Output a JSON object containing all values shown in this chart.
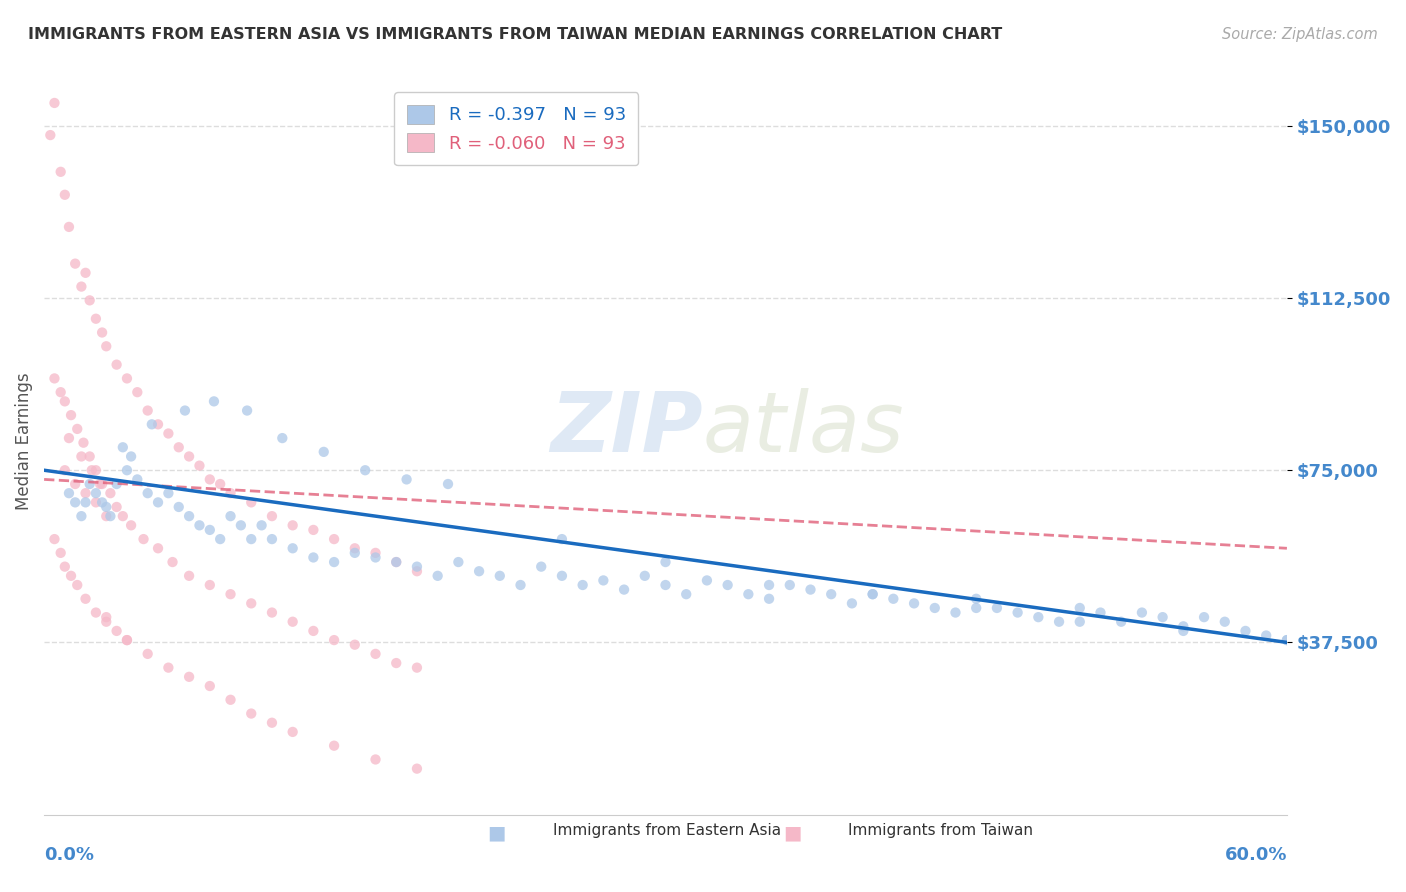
{
  "title": "IMMIGRANTS FROM EASTERN ASIA VS IMMIGRANTS FROM TAIWAN MEDIAN EARNINGS CORRELATION CHART",
  "source": "Source: ZipAtlas.com",
  "ylabel": "Median Earnings",
  "xmin": 0.0,
  "xmax": 60.0,
  "ymin": 0,
  "ymax": 162500,
  "yticks": [
    37500,
    75000,
    112500,
    150000
  ],
  "ytick_labels": [
    "$37,500",
    "$75,000",
    "$112,500",
    "$150,000"
  ],
  "watermark": "ZIPatlas",
  "series1_label": "Immigrants from Eastern Asia",
  "series1_color": "#adc8e8",
  "series1_line_color": "#1a6bbf",
  "series1_R": -0.397,
  "series1_N": 93,
  "series2_label": "Immigrants from Taiwan",
  "series2_color": "#f5b8c8",
  "series2_line_color": "#e0607a",
  "series2_R": -0.06,
  "series2_N": 93,
  "background_color": "#ffffff",
  "grid_color": "#dddddd",
  "title_color": "#333333",
  "axis_label_color": "#555555",
  "tick_label_color_y": "#4488cc",
  "tick_label_color_x": "#4488cc",
  "reg1_x0": 0,
  "reg1_y0": 75000,
  "reg1_x1": 60,
  "reg1_y1": 37500,
  "reg2_x0": 0,
  "reg2_y0": 73000,
  "reg2_x1": 60,
  "reg2_y1": 58000,
  "series1_x": [
    1.2,
    1.5,
    1.8,
    2.0,
    2.2,
    2.5,
    2.8,
    3.0,
    3.2,
    3.5,
    4.0,
    4.5,
    5.0,
    5.5,
    6.0,
    6.5,
    7.0,
    7.5,
    8.0,
    8.5,
    9.0,
    9.5,
    10.0,
    10.5,
    11.0,
    12.0,
    13.0,
    14.0,
    15.0,
    16.0,
    17.0,
    18.0,
    19.0,
    20.0,
    21.0,
    22.0,
    23.0,
    24.0,
    25.0,
    26.0,
    27.0,
    28.0,
    29.0,
    30.0,
    31.0,
    32.0,
    33.0,
    34.0,
    35.0,
    36.0,
    37.0,
    38.0,
    39.0,
    40.0,
    41.0,
    42.0,
    43.0,
    44.0,
    45.0,
    46.0,
    47.0,
    48.0,
    49.0,
    50.0,
    51.0,
    52.0,
    53.0,
    54.0,
    55.0,
    56.0,
    57.0,
    58.0,
    59.0,
    60.0,
    3.8,
    4.2,
    5.2,
    6.8,
    8.2,
    9.8,
    11.5,
    13.5,
    15.5,
    17.5,
    19.5,
    25.0,
    30.0,
    35.0,
    40.0,
    45.0,
    50.0,
    55.0,
    60.0
  ],
  "series1_y": [
    70000,
    68000,
    65000,
    68000,
    72000,
    70000,
    68000,
    67000,
    65000,
    72000,
    75000,
    73000,
    70000,
    68000,
    70000,
    67000,
    65000,
    63000,
    62000,
    60000,
    65000,
    63000,
    60000,
    63000,
    60000,
    58000,
    56000,
    55000,
    57000,
    56000,
    55000,
    54000,
    52000,
    55000,
    53000,
    52000,
    50000,
    54000,
    52000,
    50000,
    51000,
    49000,
    52000,
    50000,
    48000,
    51000,
    50000,
    48000,
    47000,
    50000,
    49000,
    48000,
    46000,
    48000,
    47000,
    46000,
    45000,
    44000,
    47000,
    45000,
    44000,
    43000,
    42000,
    45000,
    44000,
    42000,
    44000,
    43000,
    41000,
    43000,
    42000,
    40000,
    39000,
    38000,
    80000,
    78000,
    85000,
    88000,
    90000,
    88000,
    82000,
    79000,
    75000,
    73000,
    72000,
    60000,
    55000,
    50000,
    48000,
    45000,
    42000,
    40000,
    38000
  ],
  "series2_x": [
    0.3,
    0.5,
    0.8,
    1.0,
    1.2,
    1.5,
    1.8,
    2.0,
    2.2,
    2.5,
    2.8,
    3.0,
    3.5,
    4.0,
    4.5,
    5.0,
    5.5,
    6.0,
    6.5,
    7.0,
    7.5,
    8.0,
    8.5,
    9.0,
    10.0,
    11.0,
    12.0,
    13.0,
    14.0,
    15.0,
    16.0,
    17.0,
    18.0,
    1.0,
    1.5,
    2.0,
    2.5,
    3.0,
    1.2,
    1.8,
    2.3,
    2.7,
    0.5,
    0.8,
    1.0,
    1.3,
    1.6,
    1.9,
    2.2,
    2.5,
    2.8,
    3.2,
    3.5,
    3.8,
    4.2,
    4.8,
    5.5,
    6.2,
    7.0,
    8.0,
    9.0,
    10.0,
    11.0,
    12.0,
    13.0,
    14.0,
    15.0,
    16.0,
    17.0,
    18.0,
    0.5,
    0.8,
    1.0,
    1.3,
    1.6,
    2.0,
    2.5,
    3.0,
    3.5,
    4.0,
    5.0,
    6.0,
    7.0,
    8.0,
    9.0,
    10.0,
    11.0,
    12.0,
    14.0,
    16.0,
    18.0,
    3.0,
    4.0
  ],
  "series2_y": [
    148000,
    155000,
    140000,
    135000,
    128000,
    120000,
    115000,
    118000,
    112000,
    108000,
    105000,
    102000,
    98000,
    95000,
    92000,
    88000,
    85000,
    83000,
    80000,
    78000,
    76000,
    73000,
    72000,
    70000,
    68000,
    65000,
    63000,
    62000,
    60000,
    58000,
    57000,
    55000,
    53000,
    75000,
    72000,
    70000,
    68000,
    65000,
    82000,
    78000,
    75000,
    72000,
    95000,
    92000,
    90000,
    87000,
    84000,
    81000,
    78000,
    75000,
    72000,
    70000,
    67000,
    65000,
    63000,
    60000,
    58000,
    55000,
    52000,
    50000,
    48000,
    46000,
    44000,
    42000,
    40000,
    38000,
    37000,
    35000,
    33000,
    32000,
    60000,
    57000,
    54000,
    52000,
    50000,
    47000,
    44000,
    42000,
    40000,
    38000,
    35000,
    32000,
    30000,
    28000,
    25000,
    22000,
    20000,
    18000,
    15000,
    12000,
    10000,
    43000,
    38000
  ]
}
